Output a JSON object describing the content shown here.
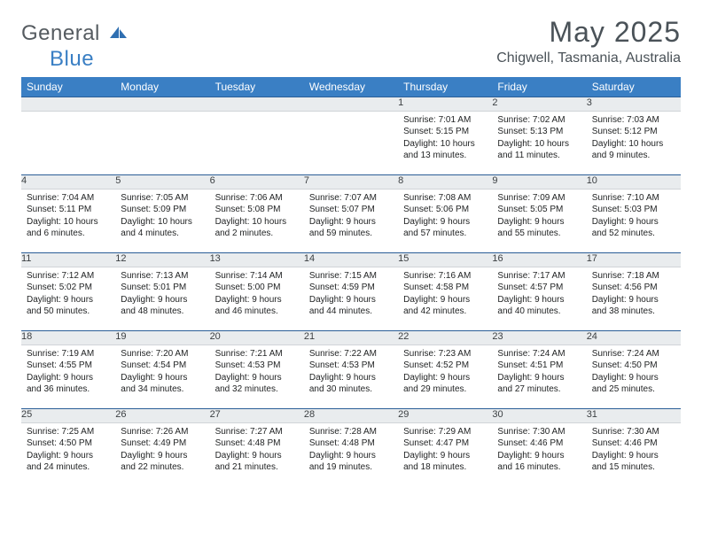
{
  "logo": {
    "text1": "General",
    "text2": "Blue"
  },
  "title": "May 2025",
  "location": "Chigwell, Tasmania, Australia",
  "colors": {
    "header_bg": "#3a7fc4",
    "header_text": "#ffffff",
    "daynum_bg": "#e9ecee",
    "rule": "#2b5e97",
    "title_text": "#4a5258",
    "body_text": "#222425",
    "page_bg": "#ffffff",
    "logo_gray": "#555b60",
    "logo_blue": "#3a7fc4"
  },
  "typography": {
    "title_fontsize": 32,
    "location_fontsize": 16,
    "dayheader_fontsize": 12,
    "daynum_fontsize": 11,
    "body_fontsize": 10,
    "logo_fontsize": 24
  },
  "day_headers": [
    "Sunday",
    "Monday",
    "Tuesday",
    "Wednesday",
    "Thursday",
    "Friday",
    "Saturday"
  ],
  "weeks": [
    [
      null,
      null,
      null,
      null,
      {
        "n": "1",
        "sr": "7:01 AM",
        "ss": "5:15 PM",
        "dl": "10 hours and 13 minutes."
      },
      {
        "n": "2",
        "sr": "7:02 AM",
        "ss": "5:13 PM",
        "dl": "10 hours and 11 minutes."
      },
      {
        "n": "3",
        "sr": "7:03 AM",
        "ss": "5:12 PM",
        "dl": "10 hours and 9 minutes."
      }
    ],
    [
      {
        "n": "4",
        "sr": "7:04 AM",
        "ss": "5:11 PM",
        "dl": "10 hours and 6 minutes."
      },
      {
        "n": "5",
        "sr": "7:05 AM",
        "ss": "5:09 PM",
        "dl": "10 hours and 4 minutes."
      },
      {
        "n": "6",
        "sr": "7:06 AM",
        "ss": "5:08 PM",
        "dl": "10 hours and 2 minutes."
      },
      {
        "n": "7",
        "sr": "7:07 AM",
        "ss": "5:07 PM",
        "dl": "9 hours and 59 minutes."
      },
      {
        "n": "8",
        "sr": "7:08 AM",
        "ss": "5:06 PM",
        "dl": "9 hours and 57 minutes."
      },
      {
        "n": "9",
        "sr": "7:09 AM",
        "ss": "5:05 PM",
        "dl": "9 hours and 55 minutes."
      },
      {
        "n": "10",
        "sr": "7:10 AM",
        "ss": "5:03 PM",
        "dl": "9 hours and 52 minutes."
      }
    ],
    [
      {
        "n": "11",
        "sr": "7:12 AM",
        "ss": "5:02 PM",
        "dl": "9 hours and 50 minutes."
      },
      {
        "n": "12",
        "sr": "7:13 AM",
        "ss": "5:01 PM",
        "dl": "9 hours and 48 minutes."
      },
      {
        "n": "13",
        "sr": "7:14 AM",
        "ss": "5:00 PM",
        "dl": "9 hours and 46 minutes."
      },
      {
        "n": "14",
        "sr": "7:15 AM",
        "ss": "4:59 PM",
        "dl": "9 hours and 44 minutes."
      },
      {
        "n": "15",
        "sr": "7:16 AM",
        "ss": "4:58 PM",
        "dl": "9 hours and 42 minutes."
      },
      {
        "n": "16",
        "sr": "7:17 AM",
        "ss": "4:57 PM",
        "dl": "9 hours and 40 minutes."
      },
      {
        "n": "17",
        "sr": "7:18 AM",
        "ss": "4:56 PM",
        "dl": "9 hours and 38 minutes."
      }
    ],
    [
      {
        "n": "18",
        "sr": "7:19 AM",
        "ss": "4:55 PM",
        "dl": "9 hours and 36 minutes."
      },
      {
        "n": "19",
        "sr": "7:20 AM",
        "ss": "4:54 PM",
        "dl": "9 hours and 34 minutes."
      },
      {
        "n": "20",
        "sr": "7:21 AM",
        "ss": "4:53 PM",
        "dl": "9 hours and 32 minutes."
      },
      {
        "n": "21",
        "sr": "7:22 AM",
        "ss": "4:53 PM",
        "dl": "9 hours and 30 minutes."
      },
      {
        "n": "22",
        "sr": "7:23 AM",
        "ss": "4:52 PM",
        "dl": "9 hours and 29 minutes."
      },
      {
        "n": "23",
        "sr": "7:24 AM",
        "ss": "4:51 PM",
        "dl": "9 hours and 27 minutes."
      },
      {
        "n": "24",
        "sr": "7:24 AM",
        "ss": "4:50 PM",
        "dl": "9 hours and 25 minutes."
      }
    ],
    [
      {
        "n": "25",
        "sr": "7:25 AM",
        "ss": "4:50 PM",
        "dl": "9 hours and 24 minutes."
      },
      {
        "n": "26",
        "sr": "7:26 AM",
        "ss": "4:49 PM",
        "dl": "9 hours and 22 minutes."
      },
      {
        "n": "27",
        "sr": "7:27 AM",
        "ss": "4:48 PM",
        "dl": "9 hours and 21 minutes."
      },
      {
        "n": "28",
        "sr": "7:28 AM",
        "ss": "4:48 PM",
        "dl": "9 hours and 19 minutes."
      },
      {
        "n": "29",
        "sr": "7:29 AM",
        "ss": "4:47 PM",
        "dl": "9 hours and 18 minutes."
      },
      {
        "n": "30",
        "sr": "7:30 AM",
        "ss": "4:46 PM",
        "dl": "9 hours and 16 minutes."
      },
      {
        "n": "31",
        "sr": "7:30 AM",
        "ss": "4:46 PM",
        "dl": "9 hours and 15 minutes."
      }
    ]
  ],
  "labels": {
    "sunrise": "Sunrise:",
    "sunset": "Sunset:",
    "daylight": "Daylight:"
  }
}
